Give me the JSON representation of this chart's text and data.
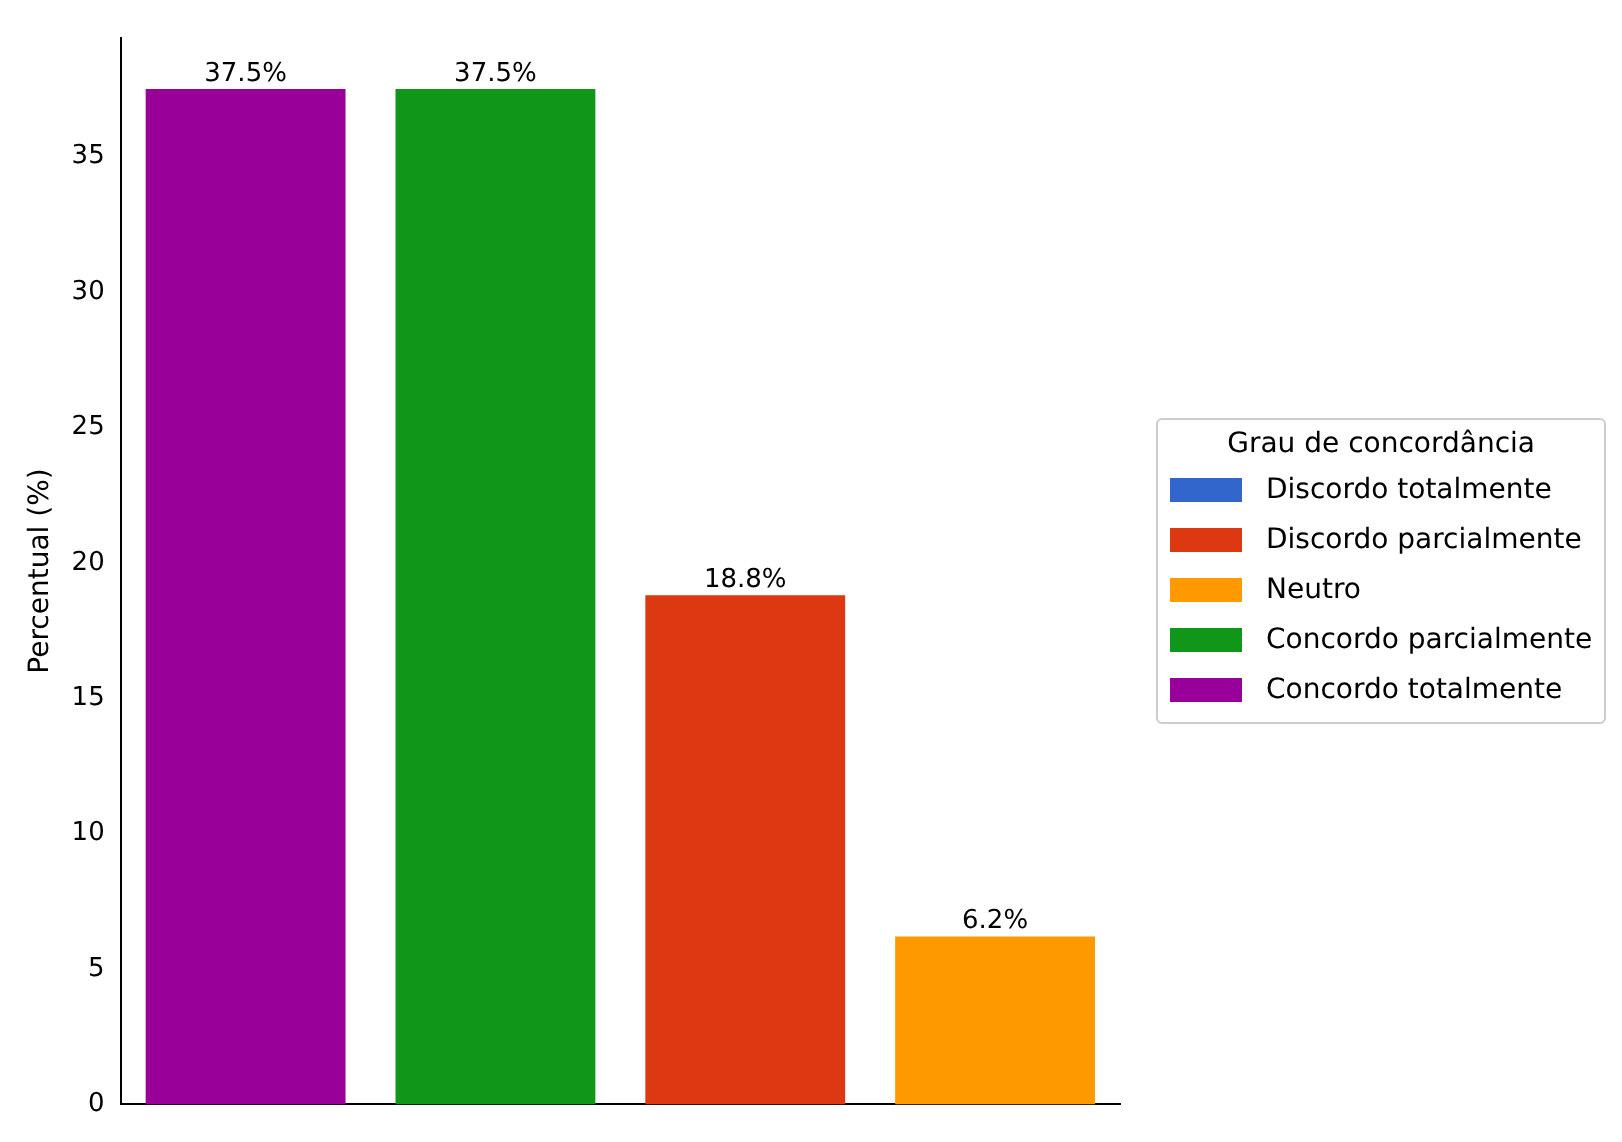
{
  "chart_data": {
    "type": "bar",
    "ylabel": "Percentual (%)",
    "legend_title": "Grau de concordância",
    "categories": [
      null,
      null,
      null,
      null
    ],
    "series": [
      {
        "name": "Discordo totalmente",
        "color": "#3366cc",
        "values": [
          null,
          null,
          null,
          null
        ],
        "value_labels": [
          null,
          null,
          null,
          null
        ]
      },
      {
        "name": "Discordo parcialmente",
        "color": "#dc3912",
        "values": [
          null,
          null,
          18.8,
          null
        ],
        "value_labels": [
          null,
          null,
          "18.8%",
          null
        ]
      },
      {
        "name": "Neutro",
        "color": "#ff9900",
        "values": [
          null,
          null,
          null,
          6.2
        ],
        "value_labels": [
          null,
          null,
          null,
          "6.2%"
        ]
      },
      {
        "name": "Concordo parcialmente",
        "color": "#109618",
        "values": [
          null,
          37.5,
          null,
          null
        ],
        "value_labels": [
          null,
          "37.5%",
          null,
          null
        ]
      },
      {
        "name": "Concordo totalmente",
        "color": "#990099",
        "values": [
          37.5,
          null,
          null,
          null
        ],
        "value_labels": [
          "37.5%",
          null,
          null,
          null
        ]
      }
    ],
    "stacked": true,
    "ylim": [
      0,
      39.4
    ],
    "yticks": [
      0,
      5,
      10,
      15,
      20,
      25,
      30,
      35
    ],
    "grid": false,
    "legend": "right"
  }
}
